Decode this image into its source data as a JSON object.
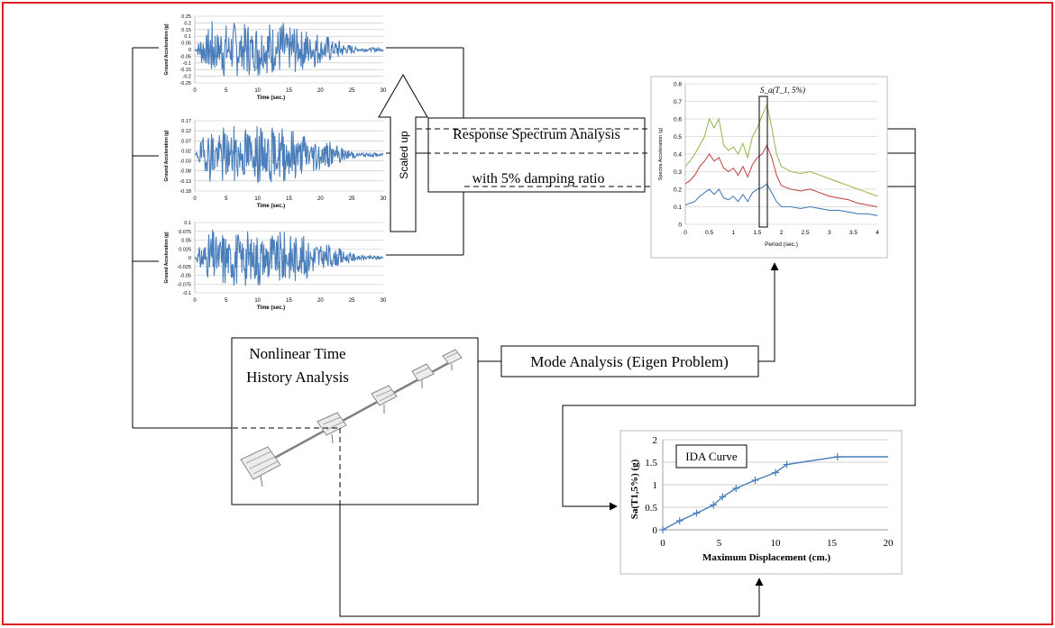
{
  "boxes": {
    "response_spectrum_line1": "Response Spectrum Analysis",
    "response_spectrum_line2": "with 5% damping ratio",
    "mode_analysis": "Mode Analysis (Eigen Problem)",
    "nonlinear_line1": "Nonlinear Time",
    "nonlinear_line2": "History Analysis",
    "scaled_up": "Scaled up",
    "ida_label": "IDA Curve"
  },
  "colors": {
    "frame": "#e02020",
    "series_blue": "#4a7ebb",
    "series_red": "#c0504d",
    "series_green": "#9bbb59",
    "line": "#000000",
    "grid": "#bfbfbf"
  },
  "chart_data": [
    {
      "type": "line",
      "id": "gm1",
      "xlabel": "Time (sec.)",
      "ylabel": "Ground Acceleration (g)",
      "xlim": [
        0,
        30
      ],
      "ylim": [
        -0.25,
        0.25
      ],
      "xticks": [
        "0",
        "5",
        "10",
        "15",
        "20",
        "25",
        "30"
      ],
      "yticks": [
        "0.25",
        "0.2",
        "0.15",
        "0.1",
        "0.05",
        "0",
        "-0.05",
        "-0.1",
        "-0.15",
        "-0.2",
        "-0.25"
      ],
      "amplitude": 0.22,
      "seed": 7
    },
    {
      "type": "line",
      "id": "gm2",
      "xlabel": "Time (sec.)",
      "ylabel": "Ground Acceleration (g)",
      "xlim": [
        0,
        30
      ],
      "ylim": [
        -0.18,
        0.17
      ],
      "xticks": [
        "0",
        "5",
        "10",
        "15",
        "20",
        "25",
        "30"
      ],
      "yticks": [
        "0.17",
        "0.12",
        "0.07",
        "0.02",
        "-0.03",
        "-0.08",
        "-0.13",
        "-0.18"
      ],
      "amplitude": 0.15,
      "seed": 19
    },
    {
      "type": "line",
      "id": "gm3",
      "xlabel": "Time (sec.)",
      "ylabel": "Ground Acceleration (g)",
      "xlim": [
        0,
        30
      ],
      "ylim": [
        -0.1,
        0.1
      ],
      "xticks": [
        "0",
        "5",
        "10",
        "15",
        "20",
        "25",
        "30"
      ],
      "yticks": [
        "0.1",
        "0.075",
        "0.05",
        "0.025",
        "0",
        "-0.025",
        "-0.05",
        "-0.075",
        "-0.1"
      ],
      "amplitude": 0.085,
      "seed": 31
    },
    {
      "type": "line",
      "id": "spectrum",
      "xlabel": "Period (sec.)",
      "ylabel": "Spectra Acceleration (g)",
      "annotation": "S_a(T_1, 5%)",
      "xlim": [
        0,
        4
      ],
      "ylim": [
        0,
        0.8
      ],
      "xticks": [
        "0",
        "0.5",
        "1",
        "1.5",
        "2",
        "2.5",
        "3",
        "3.5",
        "4"
      ],
      "yticks": [
        "0",
        "0.1",
        "0.2",
        "0.3",
        "0.4",
        "0.5",
        "0.6",
        "0.7",
        "0.8"
      ],
      "x": [
        0,
        0.1,
        0.2,
        0.3,
        0.4,
        0.5,
        0.6,
        0.7,
        0.8,
        0.9,
        1.0,
        1.1,
        1.2,
        1.3,
        1.4,
        1.5,
        1.6,
        1.7,
        1.8,
        1.9,
        2.0,
        2.2,
        2.4,
        2.6,
        2.8,
        3.0,
        3.2,
        3.4,
        3.6,
        3.8,
        4.0
      ],
      "series": [
        {
          "values": [
            0.33,
            0.36,
            0.4,
            0.45,
            0.5,
            0.6,
            0.55,
            0.6,
            0.45,
            0.42,
            0.44,
            0.4,
            0.46,
            0.38,
            0.5,
            0.55,
            0.62,
            0.68,
            0.55,
            0.4,
            0.33,
            0.3,
            0.29,
            0.3,
            0.28,
            0.26,
            0.24,
            0.22,
            0.2,
            0.18,
            0.16
          ]
        },
        {
          "values": [
            0.23,
            0.25,
            0.28,
            0.33,
            0.36,
            0.4,
            0.36,
            0.38,
            0.32,
            0.3,
            0.32,
            0.28,
            0.33,
            0.27,
            0.34,
            0.38,
            0.4,
            0.45,
            0.38,
            0.28,
            0.22,
            0.2,
            0.19,
            0.2,
            0.18,
            0.16,
            0.15,
            0.14,
            0.12,
            0.11,
            0.1
          ]
        },
        {
          "values": [
            0.11,
            0.12,
            0.13,
            0.16,
            0.18,
            0.2,
            0.17,
            0.2,
            0.15,
            0.14,
            0.16,
            0.13,
            0.17,
            0.13,
            0.18,
            0.2,
            0.21,
            0.23,
            0.18,
            0.13,
            0.1,
            0.1,
            0.09,
            0.1,
            0.09,
            0.08,
            0.08,
            0.07,
            0.06,
            0.06,
            0.05
          ]
        }
      ]
    },
    {
      "type": "line",
      "id": "ida",
      "title": "IDA Curve",
      "xlabel": "Maximum Displacement (cm.)",
      "ylabel": "Sa(T1,5%) (g)",
      "xlim": [
        0,
        20
      ],
      "ylim": [
        0,
        2
      ],
      "xticks": [
        "0",
        "5",
        "10",
        "15",
        "20"
      ],
      "yticks": [
        "0",
        "0.5",
        "1",
        "1.5",
        "2"
      ],
      "x": [
        0,
        1.5,
        3,
        4.5,
        5.3,
        6.5,
        8.2,
        10,
        11,
        15.5,
        20
      ],
      "y": [
        0,
        0.2,
        0.37,
        0.55,
        0.73,
        0.92,
        1.1,
        1.27,
        1.45,
        1.62,
        1.62
      ],
      "markers": [
        true,
        true,
        true,
        true,
        true,
        true,
        true,
        true,
        true,
        true,
        false
      ]
    }
  ]
}
